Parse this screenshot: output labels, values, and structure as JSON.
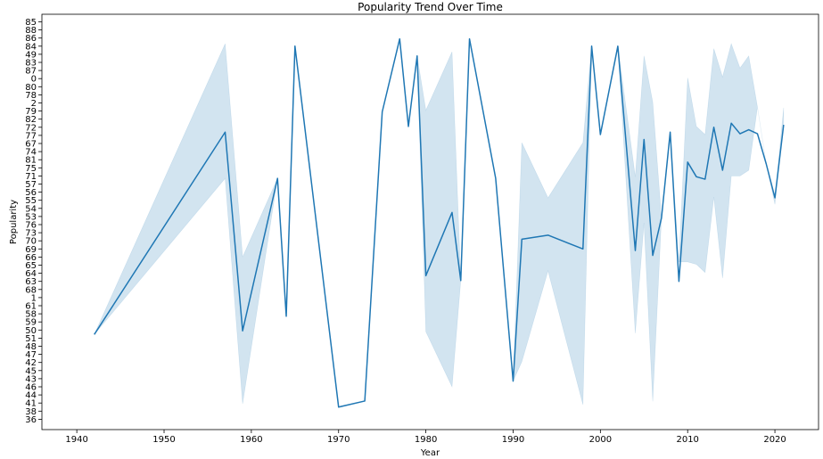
{
  "chart_data": {
    "type": "line",
    "title": "Popularity Trend Over Time",
    "xlabel": "Year",
    "ylabel": "Popularity",
    "xlim": [
      1936,
      2025
    ],
    "x_ticks": [
      1940,
      1950,
      1960,
      1970,
      1980,
      1990,
      2000,
      2010,
      2020
    ],
    "y_categories": [
      "85",
      "88",
      "86",
      "84",
      "49",
      "83",
      "87",
      "0",
      "80",
      "78",
      "2",
      "79",
      "82",
      "72",
      "77",
      "67",
      "74",
      "81",
      "75",
      "71",
      "57",
      "56",
      "55",
      "54",
      "53",
      "76",
      "73",
      "70",
      "69",
      "66",
      "65",
      "64",
      "63",
      "68",
      "1",
      "61",
      "58",
      "59",
      "50",
      "51",
      "48",
      "47",
      "42",
      "45",
      "43",
      "46",
      "44",
      "41",
      "38",
      "36"
    ],
    "grid": false,
    "legend": "none",
    "colors": {
      "line": "#1f77b4",
      "band": "#1f77b4",
      "band_opacity": 0.2,
      "background": "#ffffff"
    },
    "series": [
      {
        "x": [
          1942,
          1957,
          1959,
          1963,
          1964,
          1965,
          1970,
          1973,
          1975,
          1977,
          1978,
          1979,
          1980,
          1983,
          1984,
          1985,
          1988,
          1990,
          1991,
          1994,
          1998,
          1999,
          2000,
          2002,
          2004,
          2005,
          2006,
          2007,
          2008,
          2009,
          2010,
          2011,
          2012,
          2013,
          2014,
          2015,
          2016,
          2017,
          2018,
          2019,
          2020,
          2021
        ],
        "y": [
          38.55,
          13.6,
          38.1,
          19.3,
          36.3,
          3.0,
          47.5,
          46.75,
          11.1,
          2.1,
          12.9,
          4.2,
          31.3,
          23.5,
          31.9,
          2.1,
          19.3,
          44.3,
          26.8,
          26.3,
          28.0,
          3.0,
          13.9,
          3.0,
          28.2,
          14.5,
          28.8,
          24.2,
          13.6,
          32.0,
          17.3,
          19.1,
          19.4,
          13.0,
          18.3,
          12.5,
          13.8,
          13.3,
          13.8,
          17.5,
          21.7,
          12.7
        ],
        "band_lower": [
          38.55,
          19.3,
          47.1,
          19.3,
          36.3,
          3.0,
          47.5,
          46.75,
          11.1,
          2.1,
          12.9,
          4.2,
          38.2,
          45.0,
          31.9,
          2.1,
          19.3,
          44.3,
          41.9,
          30.7,
          47.2,
          3.0,
          13.9,
          3.0,
          38.4,
          24.8,
          46.8,
          24.2,
          13.6,
          29.6,
          29.6,
          29.9,
          30.9,
          21.6,
          31.6,
          19.0,
          19.0,
          18.3,
          10.5,
          17.5,
          22.5,
          12.5
        ],
        "band_upper": [
          38.55,
          2.7,
          29.0,
          19.3,
          36.3,
          3.0,
          47.5,
          46.75,
          11.1,
          2.1,
          12.9,
          4.2,
          10.9,
          3.7,
          31.9,
          2.1,
          19.3,
          44.3,
          14.9,
          21.7,
          14.9,
          3.0,
          13.9,
          3.0,
          19.1,
          4.2,
          9.9,
          24.2,
          13.6,
          29.6,
          6.9,
          12.9,
          13.9,
          3.3,
          6.8,
          2.7,
          5.7,
          4.2,
          10.5,
          17.5,
          21.7,
          10.6
        ]
      }
    ]
  }
}
